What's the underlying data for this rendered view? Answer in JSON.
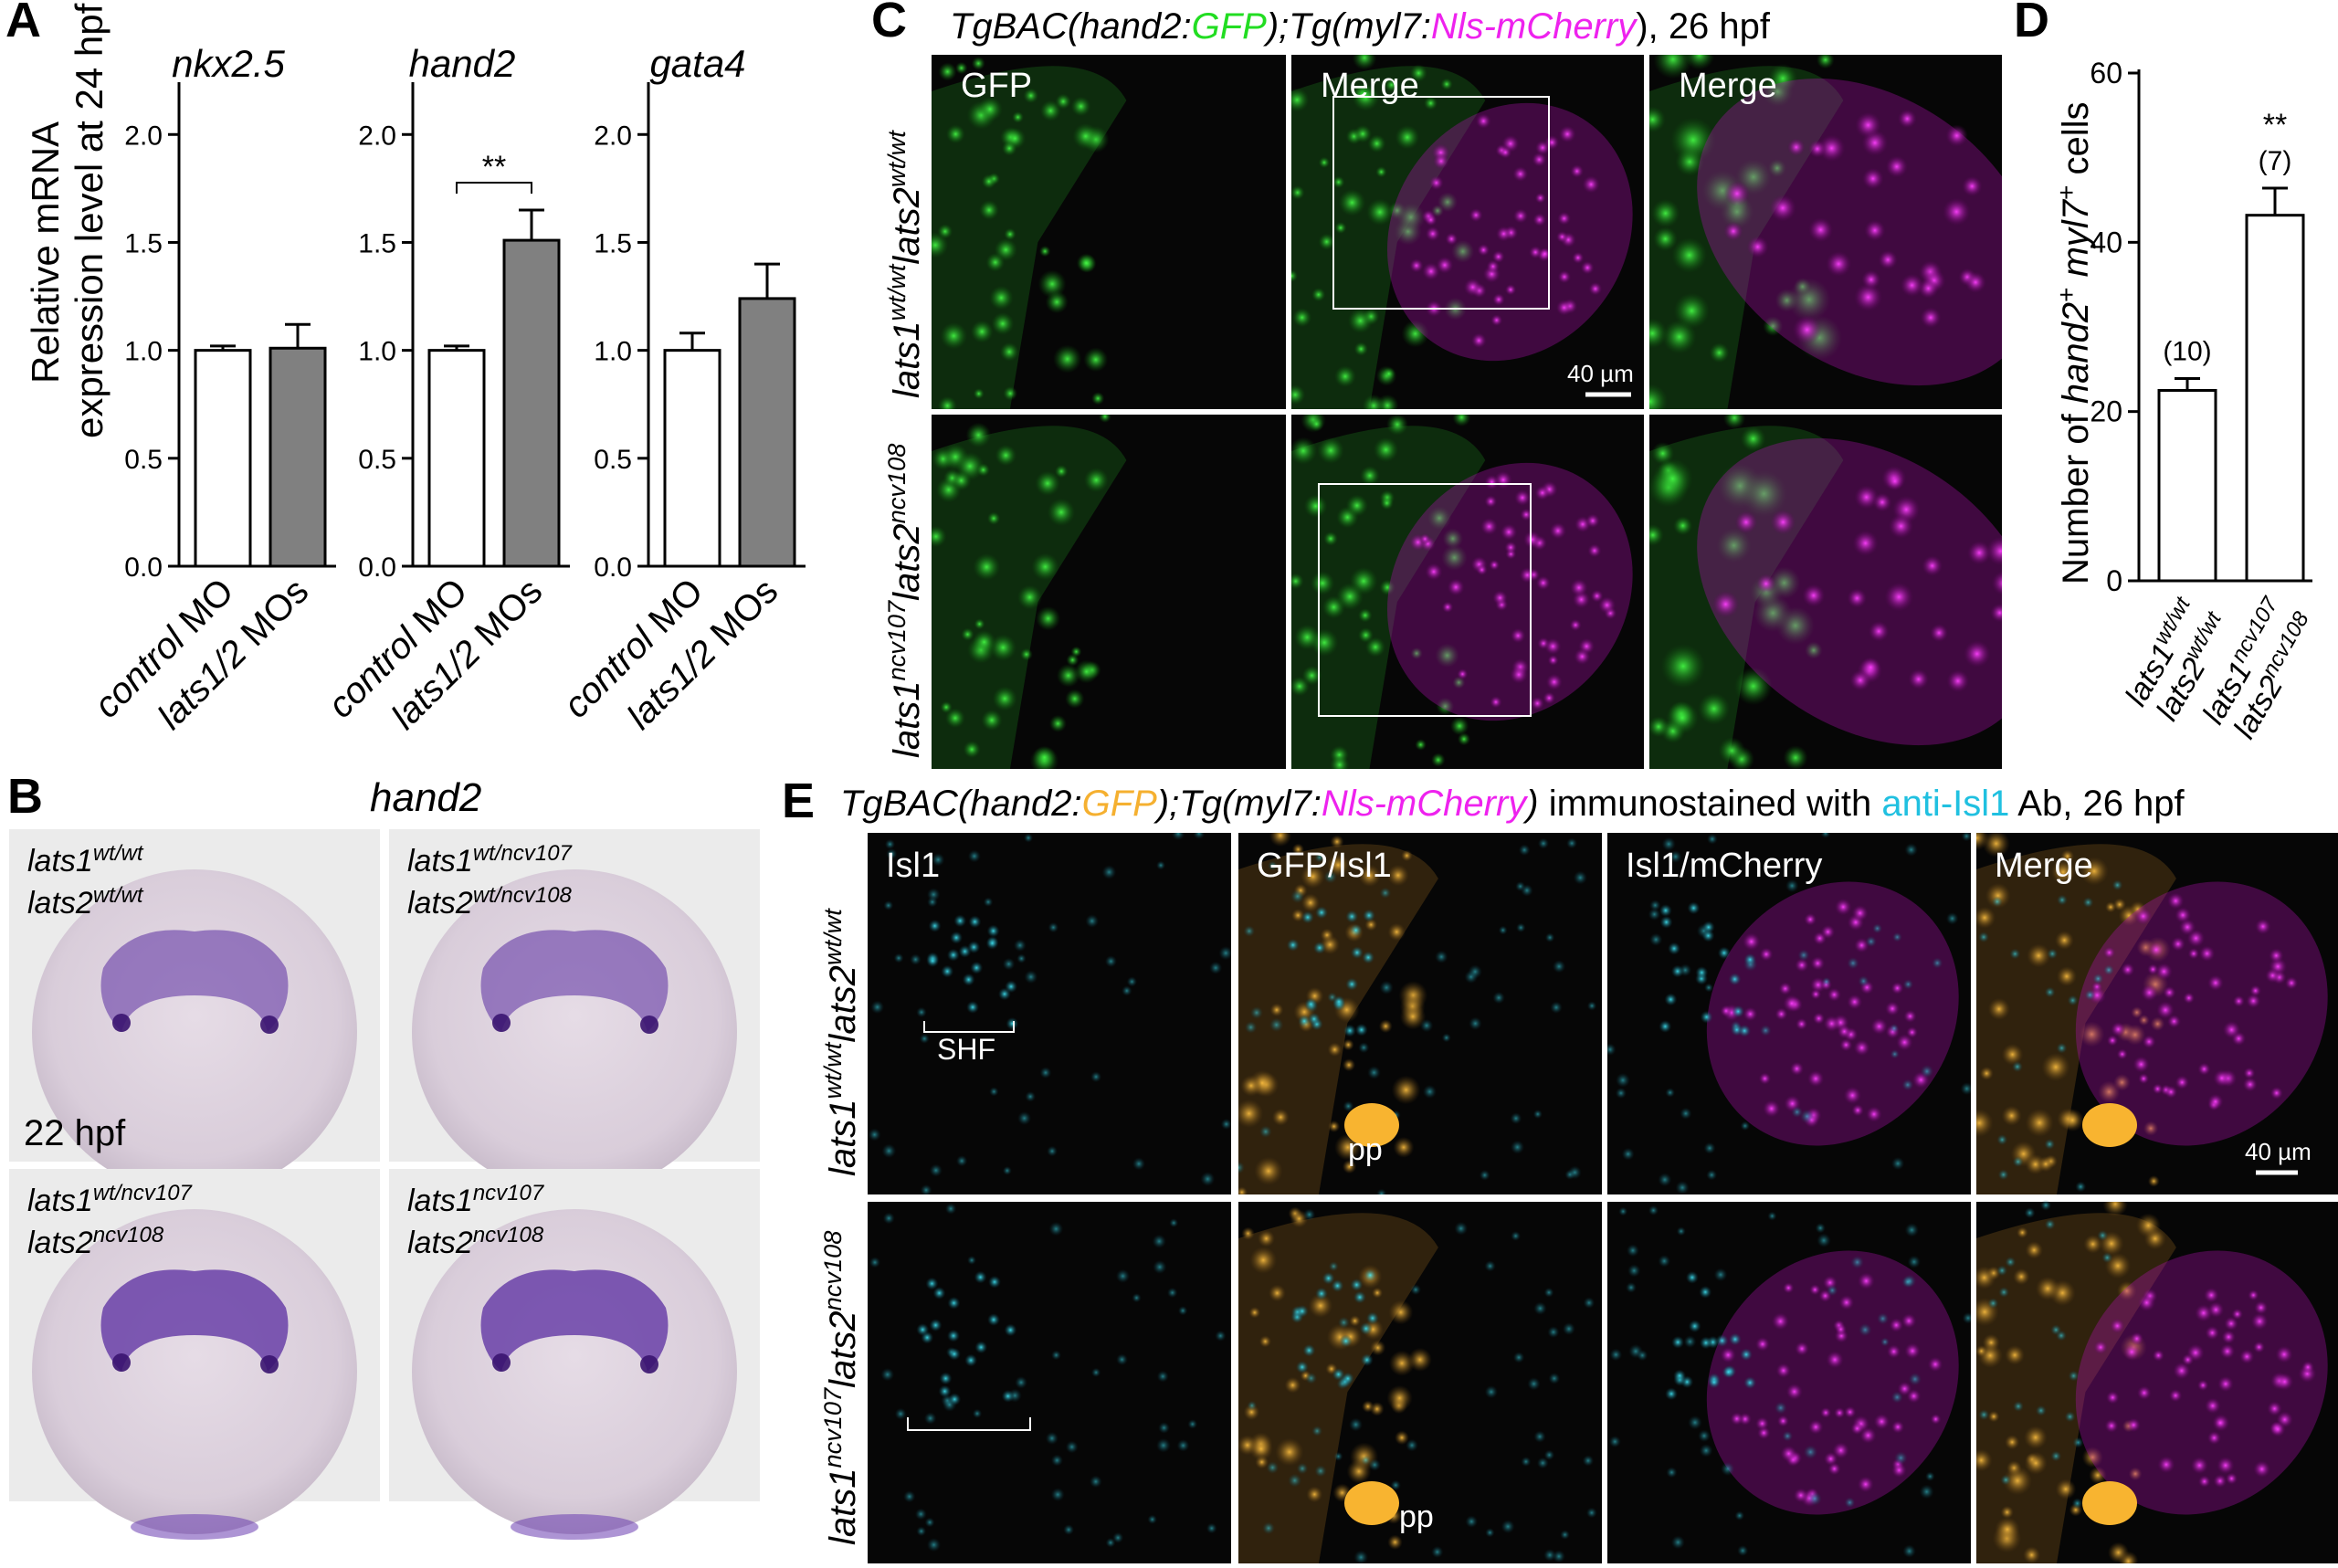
{
  "panels": {
    "A": "A",
    "B": "B",
    "C": "C",
    "D": "D",
    "E": "E"
  },
  "panel_a": {
    "ylabel_line1": "Relative mRNA",
    "ylabel_line2": "expression level at 24 hpf",
    "yticks": [
      "0.0",
      "0.5",
      "1.0",
      "1.5",
      "2.0"
    ],
    "x_categories": [
      {
        "gene_part": "control",
        "rest": " MO"
      },
      {
        "gene_part": "lats1/2",
        "rest": " MOs"
      }
    ],
    "significance": "**",
    "colors": {
      "control": "#ffffff",
      "lats": "#808080"
    }
  },
  "chart_data": [
    {
      "type": "bar",
      "title": "nkx2.5",
      "categories": [
        "control MO",
        "lats1/2 MOs"
      ],
      "values": [
        1.0,
        1.01
      ],
      "errors": [
        0.02,
        0.11
      ],
      "ylabel": "Relative mRNA expression level at 24 hpf",
      "ylim": [
        0,
        2.2
      ]
    },
    {
      "type": "bar",
      "title": "hand2",
      "categories": [
        "control MO",
        "lats1/2 MOs"
      ],
      "values": [
        1.0,
        1.51
      ],
      "errors": [
        0.02,
        0.14
      ],
      "ylabel": "Relative mRNA expression level at 24 hpf",
      "ylim": [
        0,
        2.2
      ],
      "annotation": "**"
    },
    {
      "type": "bar",
      "title": "gata4",
      "categories": [
        "control MO",
        "lats1/2 MOs"
      ],
      "values": [
        1.0,
        1.24
      ],
      "errors": [
        0.08,
        0.16
      ],
      "ylabel": "Relative mRNA expression level at 24 hpf",
      "ylim": [
        0,
        2.2
      ]
    },
    {
      "type": "bar",
      "title": "",
      "categories": [
        "lats1wt/wt lats2wt/wt",
        "lats1ncv107 lats2ncv108"
      ],
      "values": [
        22.5,
        43.2
      ],
      "errors": [
        1.4,
        3.2
      ],
      "n_labels": [
        "(10)",
        "(7)"
      ],
      "annotation": "**",
      "ylabel": "Number of hand2+ myl7+ cells",
      "ylim": [
        0,
        60
      ],
      "yticks": [
        "0",
        "20",
        "40",
        "60"
      ]
    }
  ],
  "panel_b": {
    "title": "hand2",
    "stage": "22 hpf",
    "genotypes": [
      {
        "l1_sup": "wt/wt",
        "l2_sup": "wt/wt"
      },
      {
        "l1_sup": "wt/ncv107",
        "l2_sup": "wt/ncv108"
      },
      {
        "l1_sup": "wt/ncv107",
        "l2_sup": "ncv108"
      },
      {
        "l1_sup": "ncv107",
        "l2_sup": "ncv108"
      }
    ],
    "gene1": "lats1",
    "gene2": "lats2"
  },
  "panel_c": {
    "title_parts": [
      "TgBAC(hand2:",
      "GFP",
      ");Tg(myl7:",
      "Nls-mCherry",
      "), 26 hpf"
    ],
    "col_labels": [
      "GFP",
      "Merge",
      "Merge"
    ],
    "scale": "40 µm",
    "rows": [
      {
        "l1_sup": "wt/wt",
        "l2_sup": "wt/wt"
      },
      {
        "l1_sup": "ncv107",
        "l2_sup": "ncv108"
      }
    ],
    "colors": {
      "gfp": "#22dd22",
      "mcherry": "#ee22ee"
    }
  },
  "panel_d": {
    "ylabel_parts": [
      "Number of ",
      "hand2",
      "+",
      " ",
      "myl7",
      "+",
      " cells"
    ],
    "x_genotypes": [
      {
        "l1_sup": "wt/wt",
        "l2_sup": "wt/wt"
      },
      {
        "l1_sup": "ncv107",
        "l2_sup": "ncv108"
      }
    ]
  },
  "panel_e": {
    "title_parts": [
      "TgBAC(hand2:",
      "GFP",
      ");Tg(myl7:",
      "Nls-mCherry",
      ")",
      " immunostained with ",
      "anti-Isl1",
      " Ab, 26 hpf"
    ],
    "col_labels": [
      "Isl1",
      "GFP/Isl1",
      "Isl1/mCherry",
      "Merge"
    ],
    "shf": "SHF",
    "pp": "pp",
    "scale": "40 µm",
    "rows": [
      {
        "l1_sup": "wt/wt",
        "l2_sup": "wt/wt"
      },
      {
        "l1_sup": "ncv107",
        "l2_sup": "ncv108"
      }
    ],
    "colors": {
      "gfp": "#f5b030",
      "mcherry": "#ee22ee",
      "isl1": "#20c0e0"
    }
  }
}
